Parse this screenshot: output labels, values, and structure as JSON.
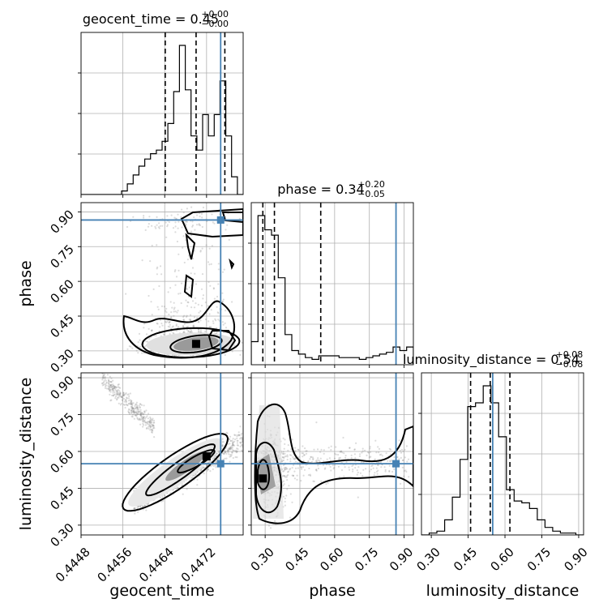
{
  "chart_data": {
    "type": "corner",
    "parameters": [
      {
        "key": "geocent_time",
        "label": "geocent_time",
        "title": "geocent_time = 0.45",
        "title_sup": "+0.00",
        "title_sub": "−0.00",
        "range": [
          0.4448,
          0.4479
        ],
        "ticks": [
          0.4448,
          0.4456,
          0.4464,
          0.4472
        ],
        "tick_labels": [
          "0.4448",
          "0.4456",
          "0.4464",
          "0.4472"
        ],
        "truth": 0.44747,
        "quantiles": [
          0.44641,
          0.447,
          0.44755
        ],
        "hist_counts": [
          0,
          0,
          0,
          0,
          0,
          0,
          0,
          2,
          6,
          11,
          16,
          20,
          23,
          25,
          30,
          40,
          58,
          84,
          59,
          33,
          25,
          45,
          33,
          45,
          64,
          33,
          10,
          0
        ]
      },
      {
        "key": "phase",
        "label": "phase",
        "title": "phase = 0.34",
        "title_sup": "+0.20",
        "title_sub": "−0.05",
        "range": [
          0.24,
          0.94
        ],
        "ticks": [
          0.3,
          0.45,
          0.6,
          0.75,
          0.9
        ],
        "tick_labels": [
          "0.30",
          "0.45",
          "0.60",
          "0.75",
          "0.90"
        ],
        "truth": 0.865,
        "quantiles": [
          0.29,
          0.34,
          0.54
        ],
        "hist_counts": [
          13,
          84,
          76,
          73,
          49,
          17,
          8,
          6,
          4,
          3,
          5,
          5,
          5,
          4,
          4,
          4,
          3,
          4,
          5,
          6,
          7,
          10,
          8,
          10
        ]
      },
      {
        "key": "luminosity_distance",
        "label": "luminosity_distance",
        "title": "luminosity_distance = 0.54",
        "title_sup": "+0.08",
        "title_sub": "−0.08",
        "range": [
          0.26,
          0.92
        ],
        "ticks": [
          0.3,
          0.45,
          0.6,
          0.75,
          0.9
        ],
        "tick_labels": [
          "0.30",
          "0.45",
          "0.60",
          "0.75",
          "0.90"
        ],
        "truth": 0.55,
        "quantiles": [
          0.46,
          0.54,
          0.62
        ],
        "hist_counts": [
          0,
          1,
          2,
          8,
          20,
          40,
          68,
          70,
          79,
          70,
          52,
          24,
          18,
          17,
          14,
          8,
          4,
          2,
          1,
          1,
          0
        ]
      }
    ],
    "contours_2d": [
      {
        "x": "geocent_time",
        "y": "phase",
        "levels": 3,
        "density_peak": [
          0.447,
          0.33
        ]
      },
      {
        "x": "geocent_time",
        "y": "luminosity_distance",
        "levels": 3,
        "density_peak": [
          0.4472,
          0.58
        ]
      },
      {
        "x": "phase",
        "y": "luminosity_distance",
        "levels": 3,
        "density_peak": [
          0.29,
          0.49
        ]
      }
    ],
    "grid": true,
    "colors": {
      "truth": "#4682b4",
      "line": "#000000",
      "grid": "#b0b0b0",
      "scatter": "#808080"
    }
  }
}
